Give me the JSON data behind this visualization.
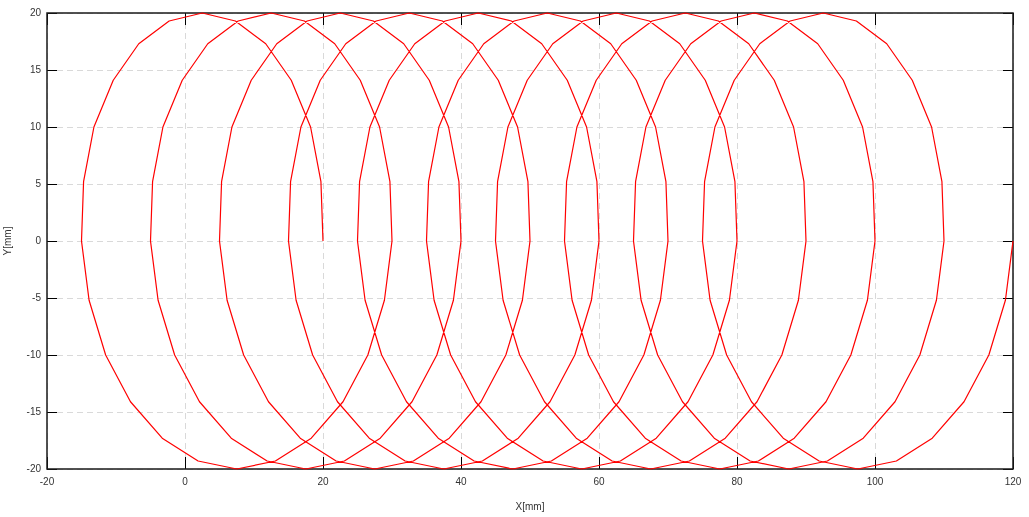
{
  "chart_data": {
    "type": "line",
    "xlabel": "X[mm]",
    "ylabel": "Y[mm]",
    "color": "#ff0000",
    "marker": "none",
    "grid": true,
    "xlim": [
      -20,
      120
    ],
    "xticks": [
      -20,
      0,
      20,
      40,
      60,
      80,
      100,
      120
    ],
    "ylim": [
      -20,
      20
    ],
    "yticks": [
      -20,
      -15,
      -10,
      -5,
      0,
      5,
      10,
      15,
      20
    ],
    "x": [
      20,
      19.7,
      18.2,
      15.4,
      11.7,
      7.3,
      2.5,
      -2.3,
      -6.7,
      -10.4,
      -13.2,
      -14.7,
      -15,
      -13.9,
      -11.5,
      -7.9,
      -3.3,
      1.9,
      7.5,
      13.1,
      18.3,
      22.9,
      26.5,
      28.9,
      30,
      29.7,
      28.2,
      25.4,
      21.7,
      17.3,
      12.5,
      7.7,
      3.3,
      -0.4,
      -3.2,
      -4.7,
      -5,
      -3.9,
      -1.5,
      2.1,
      6.7,
      11.9,
      17.5,
      23.1,
      28.3,
      32.9,
      36.5,
      38.9,
      40,
      39.7,
      38.2,
      35.4,
      31.7,
      27.3,
      22.5,
      17.7,
      13.3,
      9.6,
      6.8,
      5.3,
      5,
      6.1,
      8.5,
      12.1,
      16.7,
      21.9,
      27.5,
      33.1,
      38.3,
      42.9,
      46.5,
      48.9,
      50,
      49.7,
      48.2,
      45.4,
      41.7,
      37.3,
      32.5,
      27.7,
      23.3,
      19.6,
      16.8,
      15.3,
      15,
      16.1,
      18.5,
      22.1,
      26.7,
      31.9,
      37.5,
      43.1,
      48.3,
      52.9,
      56.5,
      58.9,
      60,
      59.7,
      58.2,
      55.4,
      51.7,
      47.3,
      42.5,
      37.7,
      33.3,
      29.6,
      26.8,
      25.3,
      25,
      26.1,
      28.5,
      32.1,
      36.7,
      41.9,
      47.5,
      53.1,
      58.3,
      62.9,
      66.5,
      68.9,
      70,
      69.7,
      68.2,
      65.4,
      61.7,
      57.3,
      52.5,
      47.7,
      43.3,
      39.6,
      36.8,
      35.3,
      35,
      36.1,
      38.5,
      42.1,
      46.7,
      51.9,
      57.5,
      63.1,
      68.3,
      72.9,
      76.5,
      78.9,
      80,
      79.7,
      78.2,
      75.4,
      71.7,
      67.3,
      62.5,
      57.7,
      53.3,
      49.6,
      46.8,
      45.3,
      45,
      46.1,
      48.5,
      52.1,
      56.7,
      61.9,
      67.5,
      73.1,
      78.3,
      82.9,
      86.5,
      88.9,
      90,
      89.7,
      88.2,
      85.4,
      81.7,
      77.3,
      72.5,
      67.7,
      63.3,
      59.6,
      56.8,
      55.3,
      55,
      56.1,
      58.5,
      62.1,
      66.7,
      71.9,
      77.5,
      83.1,
      88.3,
      92.9,
      96.5,
      98.9,
      100,
      99.7,
      98.2,
      95.4,
      91.7,
      87.3,
      82.5,
      77.7,
      73.3,
      69.6,
      66.8,
      65.3,
      65,
      66.1,
      68.5,
      72.1,
      76.7,
      81.9,
      87.5,
      93.1,
      98.3,
      102.9,
      106.5,
      108.9,
      110,
      109.7,
      108.2,
      105.4,
      101.7,
      97.3,
      92.5,
      87.7,
      83.3,
      79.6,
      76.8,
      75.3,
      75,
      76.1,
      78.5,
      82.1,
      86.7,
      91.9,
      97.5,
      103.1,
      108.3,
      112.9,
      116.5,
      118.9,
      120
    ],
    "values": [
      0,
      5.2,
      10,
      14.1,
      17.3,
      19.3,
      20,
      19.3,
      17.3,
      14.1,
      10,
      5.2,
      0,
      -5.2,
      -10,
      -14.1,
      -17.3,
      -19.3,
      -20,
      -19.3,
      -17.3,
      -14.1,
      -10,
      -5.2,
      0,
      5.2,
      10,
      14.1,
      17.3,
      19.3,
      20,
      19.3,
      17.3,
      14.1,
      10,
      5.2,
      0,
      -5.2,
      -10,
      -14.1,
      -17.3,
      -19.3,
      -20,
      -19.3,
      -17.3,
      -14.1,
      -10,
      -5.2,
      0,
      5.2,
      10,
      14.1,
      17.3,
      19.3,
      20,
      19.3,
      17.3,
      14.1,
      10,
      5.2,
      0,
      -5.2,
      -10,
      -14.1,
      -17.3,
      -19.3,
      -20,
      -19.3,
      -17.3,
      -14.1,
      -10,
      -5.2,
      0,
      5.2,
      10,
      14.1,
      17.3,
      19.3,
      20,
      19.3,
      17.3,
      14.1,
      10,
      5.2,
      0,
      -5.2,
      -10,
      -14.1,
      -17.3,
      -19.3,
      -20,
      -19.3,
      -17.3,
      -14.1,
      -10,
      -5.2,
      0,
      5.2,
      10,
      14.1,
      17.3,
      19.3,
      20,
      19.3,
      17.3,
      14.1,
      10,
      5.2,
      0,
      -5.2,
      -10,
      -14.1,
      -17.3,
      -19.3,
      -20,
      -19.3,
      -17.3,
      -14.1,
      -10,
      -5.2,
      0,
      5.2,
      10,
      14.1,
      17.3,
      19.3,
      20,
      19.3,
      17.3,
      14.1,
      10,
      5.2,
      0,
      -5.2,
      -10,
      -14.1,
      -17.3,
      -19.3,
      -20,
      -19.3,
      -17.3,
      -14.1,
      -10,
      -5.2,
      0,
      5.2,
      10,
      14.1,
      17.3,
      19.3,
      20,
      19.3,
      17.3,
      14.1,
      10,
      5.2,
      0,
      -5.2,
      -10,
      -14.1,
      -17.3,
      -19.3,
      -20,
      -19.3,
      -17.3,
      -14.1,
      -10,
      -5.2,
      0,
      5.2,
      10,
      14.1,
      17.3,
      19.3,
      20,
      19.3,
      17.3,
      14.1,
      10,
      5.2,
      0,
      -5.2,
      -10,
      -14.1,
      -17.3,
      -19.3,
      -20,
      -19.3,
      -17.3,
      -14.1,
      -10,
      -5.2,
      0,
      5.2,
      10,
      14.1,
      17.3,
      19.3,
      20,
      19.3,
      17.3,
      14.1,
      10,
      5.2,
      0,
      -5.2,
      -10,
      -14.1,
      -17.3,
      -19.3,
      -20,
      -19.3,
      -17.3,
      -14.1,
      -10,
      -5.2,
      0,
      5.2,
      10,
      14.1,
      17.3,
      19.3,
      20,
      19.3,
      17.3,
      14.1,
      10,
      5.2,
      0,
      -5.2,
      -10,
      -14.1,
      -17.3,
      -19.3,
      -20,
      -19.3,
      -17.3,
      -14.1,
      -10,
      -5.2,
      0
    ]
  }
}
